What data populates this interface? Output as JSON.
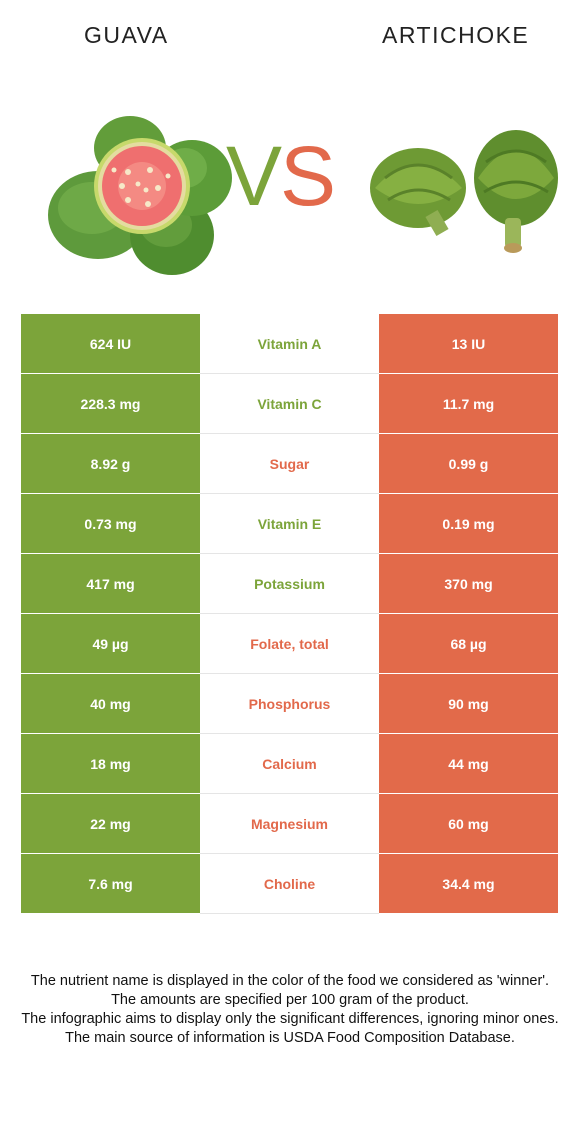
{
  "left_food": "GUAVA",
  "right_food": "ARTICHOKE",
  "vs": {
    "v": "V",
    "s": "S"
  },
  "colors": {
    "left": "#7ca43a",
    "right": "#e26a4a"
  },
  "rows": [
    {
      "nutrient": "Vitamin A",
      "left": "624 IU",
      "right": "13 IU",
      "winner": "left"
    },
    {
      "nutrient": "Vitamin C",
      "left": "228.3 mg",
      "right": "11.7 mg",
      "winner": "left"
    },
    {
      "nutrient": "Sugar",
      "left": "8.92 g",
      "right": "0.99 g",
      "winner": "right"
    },
    {
      "nutrient": "Vitamin E",
      "left": "0.73 mg",
      "right": "0.19 mg",
      "winner": "left"
    },
    {
      "nutrient": "Potassium",
      "left": "417 mg",
      "right": "370 mg",
      "winner": "left"
    },
    {
      "nutrient": "Folate, total",
      "left": "49 µg",
      "right": "68 µg",
      "winner": "right"
    },
    {
      "nutrient": "Phosphorus",
      "left": "40 mg",
      "right": "90 mg",
      "winner": "right"
    },
    {
      "nutrient": "Calcium",
      "left": "18 mg",
      "right": "44 mg",
      "winner": "right"
    },
    {
      "nutrient": "Magnesium",
      "left": "22 mg",
      "right": "60 mg",
      "winner": "right"
    },
    {
      "nutrient": "Choline",
      "left": "7.6 mg",
      "right": "34.4 mg",
      "winner": "right"
    }
  ],
  "footnote": [
    "The nutrient name is displayed in the color of the food we considered as 'winner'.",
    "The amounts are specified per 100 gram of the product.",
    "The infographic aims to display only the significant differences, ignoring minor ones.",
    "The main source of information is USDA Food Composition Database."
  ]
}
